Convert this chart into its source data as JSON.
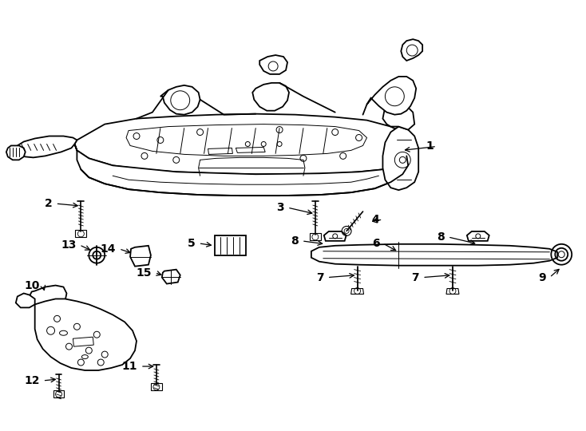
{
  "background_color": "#ffffff",
  "line_color": "#000000",
  "fig_width": 7.34,
  "fig_height": 5.4,
  "dpi": 100,
  "font_size": 10,
  "font_size_small": 9,
  "lw_main": 1.3,
  "lw_thin": 0.7,
  "lw_thick": 1.8
}
